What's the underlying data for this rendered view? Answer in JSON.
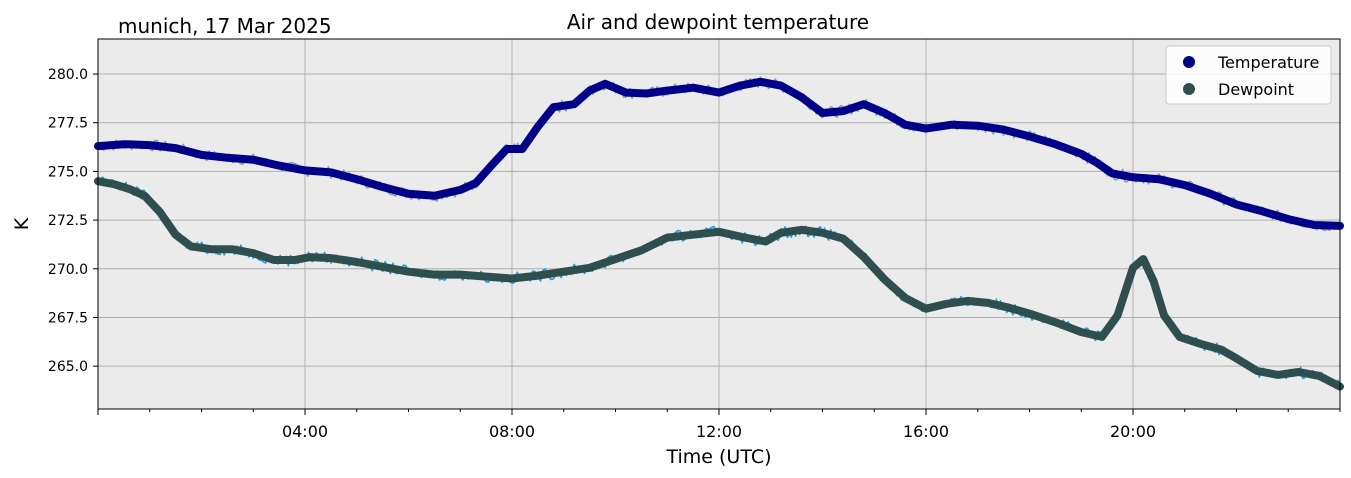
{
  "header": {
    "location_date": "munich, 17 Mar 2025"
  },
  "chart_data": {
    "type": "line",
    "title": "Air and dewpoint temperature",
    "xlabel": "Time (UTC)",
    "ylabel": "K",
    "x_unit": "hours UTC",
    "xlim": [
      0,
      24
    ],
    "ylim": [
      262.8,
      281.8
    ],
    "x_ticks": [
      {
        "x": 4,
        "label": "04:00"
      },
      {
        "x": 8,
        "label": "08:00"
      },
      {
        "x": 12,
        "label": "12:00"
      },
      {
        "x": 16,
        "label": "16:00"
      },
      {
        "x": 20,
        "label": "20:00"
      }
    ],
    "y_ticks": [
      {
        "y": 265.0,
        "label": "265.0"
      },
      {
        "y": 267.5,
        "label": "267.5"
      },
      {
        "y": 270.0,
        "label": "270.0"
      },
      {
        "y": 272.5,
        "label": "272.5"
      },
      {
        "y": 275.0,
        "label": "275.0"
      },
      {
        "y": 277.5,
        "label": "277.5"
      },
      {
        "y": 280.0,
        "label": "280.0"
      }
    ],
    "grid": true,
    "legend_position": "top-right",
    "background_color": "#ebebeb",
    "series": [
      {
        "name": "Temperature",
        "color": "#00008b",
        "raw_color": "#7aa6aa",
        "points": [
          [
            0.0,
            276.3
          ],
          [
            0.5,
            276.4
          ],
          [
            1.0,
            276.35
          ],
          [
            1.5,
            276.2
          ],
          [
            2.0,
            275.85
          ],
          [
            2.5,
            275.7
          ],
          [
            3.0,
            275.6
          ],
          [
            3.5,
            275.3
          ],
          [
            4.0,
            275.05
          ],
          [
            4.5,
            274.95
          ],
          [
            5.0,
            274.6
          ],
          [
            5.5,
            274.2
          ],
          [
            6.0,
            273.85
          ],
          [
            6.5,
            273.75
          ],
          [
            7.0,
            274.05
          ],
          [
            7.3,
            274.4
          ],
          [
            7.6,
            275.3
          ],
          [
            7.9,
            276.15
          ],
          [
            8.2,
            276.15
          ],
          [
            8.5,
            277.3
          ],
          [
            8.8,
            278.3
          ],
          [
            9.2,
            278.45
          ],
          [
            9.5,
            279.15
          ],
          [
            9.8,
            279.5
          ],
          [
            10.2,
            279.05
          ],
          [
            10.6,
            279.0
          ],
          [
            11.0,
            279.15
          ],
          [
            11.5,
            279.3
          ],
          [
            12.0,
            279.05
          ],
          [
            12.4,
            279.4
          ],
          [
            12.8,
            279.6
          ],
          [
            13.2,
            279.4
          ],
          [
            13.6,
            278.8
          ],
          [
            14.0,
            278.0
          ],
          [
            14.4,
            278.1
          ],
          [
            14.8,
            278.45
          ],
          [
            15.2,
            278.0
          ],
          [
            15.6,
            277.4
          ],
          [
            16.0,
            277.2
          ],
          [
            16.5,
            277.4
          ],
          [
            17.0,
            277.35
          ],
          [
            17.5,
            277.15
          ],
          [
            18.0,
            276.8
          ],
          [
            18.5,
            276.4
          ],
          [
            19.0,
            275.9
          ],
          [
            19.3,
            275.45
          ],
          [
            19.6,
            274.9
          ],
          [
            20.0,
            274.7
          ],
          [
            20.5,
            274.6
          ],
          [
            21.0,
            274.3
          ],
          [
            21.5,
            273.85
          ],
          [
            22.0,
            273.3
          ],
          [
            22.5,
            272.95
          ],
          [
            23.0,
            272.55
          ],
          [
            23.5,
            272.25
          ],
          [
            24.0,
            272.2
          ]
        ]
      },
      {
        "name": "Dewpoint",
        "color": "#2f4f4f",
        "raw_color": "#1ea1e8",
        "points": [
          [
            0.0,
            274.5
          ],
          [
            0.3,
            274.35
          ],
          [
            0.6,
            274.1
          ],
          [
            0.9,
            273.75
          ],
          [
            1.2,
            272.9
          ],
          [
            1.5,
            271.75
          ],
          [
            1.8,
            271.15
          ],
          [
            2.2,
            271.0
          ],
          [
            2.6,
            271.0
          ],
          [
            3.0,
            270.8
          ],
          [
            3.4,
            270.45
          ],
          [
            3.8,
            270.45
          ],
          [
            4.1,
            270.6
          ],
          [
            4.5,
            270.55
          ],
          [
            5.0,
            270.35
          ],
          [
            5.5,
            270.1
          ],
          [
            6.0,
            269.85
          ],
          [
            6.5,
            269.7
          ],
          [
            7.0,
            269.7
          ],
          [
            7.5,
            269.6
          ],
          [
            8.0,
            269.5
          ],
          [
            8.5,
            269.65
          ],
          [
            9.0,
            269.85
          ],
          [
            9.5,
            270.05
          ],
          [
            10.0,
            270.5
          ],
          [
            10.5,
            270.95
          ],
          [
            11.0,
            271.6
          ],
          [
            11.5,
            271.75
          ],
          [
            12.0,
            271.9
          ],
          [
            12.5,
            271.6
          ],
          [
            12.9,
            271.4
          ],
          [
            13.2,
            271.85
          ],
          [
            13.6,
            272.0
          ],
          [
            14.0,
            271.85
          ],
          [
            14.4,
            271.55
          ],
          [
            14.8,
            270.6
          ],
          [
            15.2,
            269.45
          ],
          [
            15.6,
            268.5
          ],
          [
            16.0,
            267.95
          ],
          [
            16.4,
            268.2
          ],
          [
            16.8,
            268.35
          ],
          [
            17.2,
            268.25
          ],
          [
            17.6,
            268.0
          ],
          [
            18.0,
            267.7
          ],
          [
            18.5,
            267.25
          ],
          [
            19.0,
            266.75
          ],
          [
            19.4,
            266.5
          ],
          [
            19.7,
            267.6
          ],
          [
            20.0,
            270.05
          ],
          [
            20.2,
            270.5
          ],
          [
            20.4,
            269.35
          ],
          [
            20.6,
            267.6
          ],
          [
            20.9,
            266.5
          ],
          [
            21.3,
            266.15
          ],
          [
            21.7,
            265.85
          ],
          [
            22.0,
            265.4
          ],
          [
            22.4,
            264.75
          ],
          [
            22.8,
            264.55
          ],
          [
            23.2,
            264.7
          ],
          [
            23.6,
            264.5
          ],
          [
            24.0,
            263.95
          ]
        ]
      }
    ]
  }
}
